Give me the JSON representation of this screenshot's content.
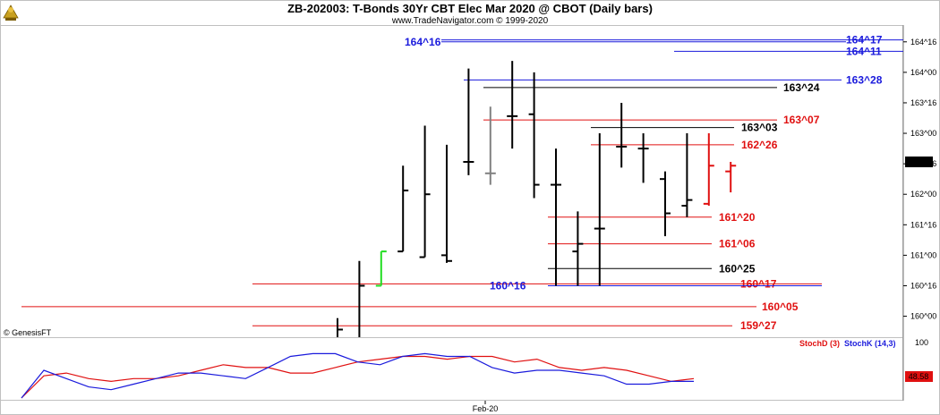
{
  "header": {
    "title": "ZB-202003:  T-Bonds 30Yr CBT Elec Mar 2020 @ CBOT  (Daily bars)",
    "subtitle": "www.TradeNavigator.com © 1999-2020",
    "logo_icon": "genesis-rooster-icon"
  },
  "watermark": "© GenesisFT",
  "chart_data": {
    "type": "ohlc",
    "price_unit": "32nds",
    "x_label": "Feb-20",
    "ylim": [
      "159^21",
      "164^22"
    ],
    "y_ticks": [
      "164^16",
      "164^00",
      "163^16",
      "163^00",
      "162^16",
      "162^00",
      "161^16",
      "161^00",
      "160^16",
      "160^00"
    ],
    "last_price": "162^15",
    "bars": [
      {
        "h": "159^31",
        "l": "159^21",
        "c": "159^25",
        "o": null,
        "color": "black"
      },
      {
        "h": "160^29",
        "l": "159^21",
        "c": "160^16",
        "o": null,
        "color": "black"
      },
      {
        "h": "161^02",
        "l": "160^16",
        "c": "161^02",
        "o": "160^16",
        "color": "green"
      },
      {
        "h": "162^15",
        "l": "161^02",
        "c": "162^02",
        "o": "161^02",
        "color": "black"
      },
      {
        "h": "163^04",
        "l": "160^31",
        "c": "162^00",
        "o": "160^31",
        "color": "black"
      },
      {
        "h": "162^26",
        "l": "160^28",
        "c": "160^29",
        "o": "161^00",
        "color": "black"
      },
      {
        "h": "164^02",
        "l": "162^10",
        "c": "162^17",
        "o": "162^17",
        "color": "black"
      },
      {
        "h": "163^14",
        "l": "162^05",
        "c": "162^11",
        "o": "162^11",
        "color": "gray"
      },
      {
        "h": "164^06",
        "l": "162^24",
        "c": "163^09",
        "o": "163^09",
        "color": "black"
      },
      {
        "h": "164^00",
        "l": "161^30",
        "c": "162^05",
        "o": "163^10",
        "color": "black"
      },
      {
        "h": "162^24",
        "l": "160^16",
        "c": "162^05",
        "o": "162^05",
        "color": "black"
      },
      {
        "h": "161^23",
        "l": "160^16",
        "c": "161^06",
        "o": "161^02",
        "color": "black"
      },
      {
        "h": "163^00",
        "l": "160^16",
        "c": "161^14",
        "o": "161^14",
        "color": "black"
      },
      {
        "h": "163^16",
        "l": "162^14",
        "c": "162^25",
        "o": "162^25",
        "color": "black"
      },
      {
        "h": "163^00",
        "l": "162^06",
        "c": "162^24",
        "o": "162^24",
        "color": "black"
      },
      {
        "h": "162^12",
        "l": "161^10",
        "c": "161^22",
        "o": "162^08",
        "color": "black"
      },
      {
        "h": "163^00",
        "l": "161^20",
        "c": "161^29",
        "o": "161^26",
        "color": "black"
      },
      {
        "h": "163^00",
        "l": "161^26",
        "c": "162^15",
        "o": "161^27",
        "color": "red"
      },
      {
        "h": "162^17",
        "l": "162^01",
        "c": "162^15",
        "o": "162^12",
        "color": "red"
      }
    ],
    "levels": [
      {
        "label": "164^17",
        "color": "#1a1adc",
        "side": "right"
      },
      {
        "label": "164^16",
        "color": "#1a1adc",
        "side": "left"
      },
      {
        "label": "164^11",
        "color": "#1a1adc",
        "side": "right"
      },
      {
        "label": "163^28",
        "color": "#1a1adc",
        "side": "right"
      },
      {
        "label": "163^24",
        "color": "#000000",
        "side": "right"
      },
      {
        "label": "163^07",
        "color": "#e01010",
        "side": "right"
      },
      {
        "label": "163^03",
        "color": "#000000",
        "side": "right"
      },
      {
        "label": "162^26",
        "color": "#e01010",
        "side": "right"
      },
      {
        "label": "161^20",
        "color": "#e01010",
        "side": "right"
      },
      {
        "label": "161^06",
        "color": "#e01010",
        "side": "right"
      },
      {
        "label": "160^25",
        "color": "#000000",
        "side": "right"
      },
      {
        "label": "160^17",
        "color": "#e01010",
        "side": "right"
      },
      {
        "label": "160^16",
        "color": "#1a1adc",
        "side": "left"
      },
      {
        "label": "160^05",
        "color": "#e01010",
        "side": "right"
      },
      {
        "label": "159^27",
        "color": "#e01010",
        "side": "right"
      }
    ],
    "stochastic": {
      "ylim": [
        0,
        100
      ],
      "y_ticks": [
        "100"
      ],
      "last_value": "48.58",
      "series": [
        {
          "name": "StochD (3)",
          "color": "#e01010",
          "values": [
            0,
            40,
            45,
            35,
            30,
            35,
            35,
            40,
            50,
            60,
            55,
            55,
            45,
            45,
            55,
            65,
            70,
            75,
            75,
            70,
            75,
            75,
            65,
            70,
            55,
            50,
            55,
            50,
            40,
            30,
            35
          ]
        },
        {
          "name": "StochK (14,3)",
          "color": "#1a1adc",
          "values": [
            0,
            50,
            35,
            20,
            15,
            25,
            35,
            45,
            45,
            40,
            35,
            55,
            75,
            80,
            80,
            65,
            60,
            75,
            80,
            75,
            75,
            55,
            45,
            50,
            50,
            45,
            40,
            25,
            25,
            30,
            30
          ]
        }
      ]
    }
  }
}
